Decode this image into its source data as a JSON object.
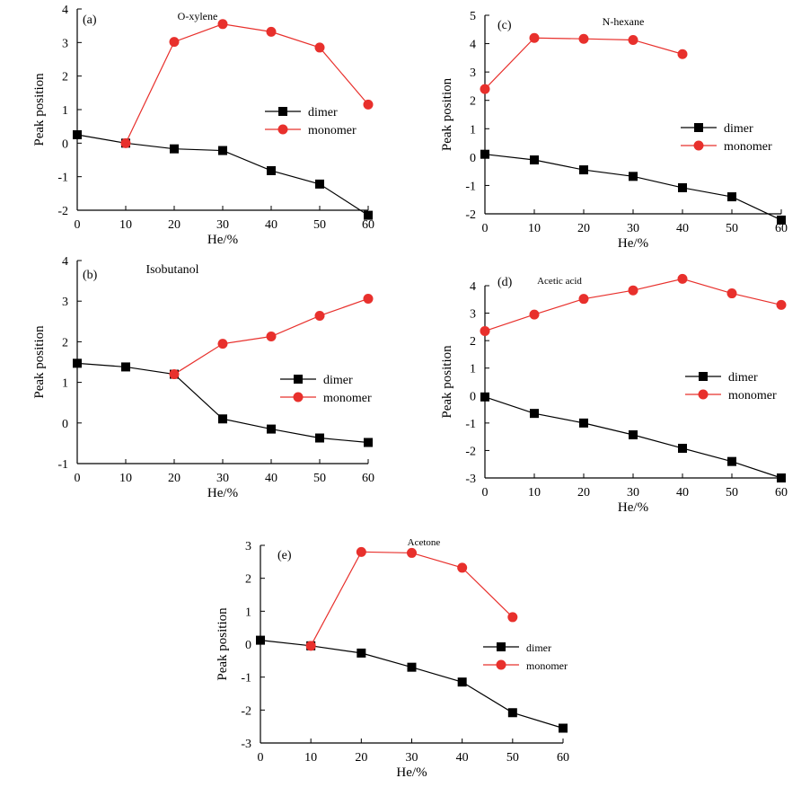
{
  "chart_data": [
    {
      "type": "line",
      "panel_label": "(a)",
      "title": "O-xylene",
      "xlabel": "He/%",
      "ylabel": "Peak position",
      "xlim": [
        0,
        60
      ],
      "ylim": [
        -2,
        4
      ],
      "x_ticks": [
        0,
        10,
        20,
        30,
        40,
        50,
        60
      ],
      "y_ticks": [
        -2,
        -1,
        0,
        1,
        2,
        3,
        4
      ],
      "legend_position": "right-middle",
      "series": [
        {
          "name": "dimer",
          "color": "#000000",
          "marker": "square",
          "x": [
            0,
            10,
            20,
            30,
            40,
            50,
            60
          ],
          "values": [
            0.25,
            0.0,
            -0.17,
            -0.22,
            -0.82,
            -1.22,
            -2.15
          ]
        },
        {
          "name": "monomer",
          "color": "#e8302c",
          "marker": "circle",
          "x": [
            10,
            20,
            30,
            40,
            50,
            60
          ],
          "values": [
            0.0,
            3.02,
            3.55,
            3.32,
            2.85,
            1.15
          ]
        }
      ]
    },
    {
      "type": "line",
      "panel_label": "(b)",
      "title": "Isobutanol",
      "xlabel": "He/%",
      "ylabel": "Peak position",
      "xlim": [
        0,
        60
      ],
      "ylim": [
        -1,
        4
      ],
      "x_ticks": [
        0,
        10,
        20,
        30,
        40,
        50,
        60
      ],
      "y_ticks": [
        -1,
        0,
        1,
        2,
        3,
        4
      ],
      "legend_position": "right-middle",
      "series": [
        {
          "name": "dimer",
          "color": "#000000",
          "marker": "square",
          "x": [
            0,
            10,
            20,
            30,
            40,
            50,
            60
          ],
          "values": [
            1.47,
            1.38,
            1.2,
            0.1,
            -0.15,
            -0.37,
            -0.48
          ]
        },
        {
          "name": "monomer",
          "color": "#e8302c",
          "marker": "circle",
          "x": [
            20,
            30,
            40,
            50,
            60
          ],
          "values": [
            1.2,
            1.95,
            2.13,
            2.64,
            3.06
          ]
        }
      ]
    },
    {
      "type": "line",
      "panel_label": "(c)",
      "title": "N-hexane",
      "xlabel": "He/%",
      "ylabel": "Peak position",
      "xlim": [
        0,
        60
      ],
      "ylim": [
        -2,
        5
      ],
      "x_ticks": [
        0,
        10,
        20,
        30,
        40,
        50,
        60
      ],
      "y_ticks": [
        -2,
        -1,
        0,
        1,
        2,
        3,
        4,
        5
      ],
      "legend_position": "right-middle",
      "series": [
        {
          "name": "dimer",
          "color": "#000000",
          "marker": "square",
          "x": [
            0,
            10,
            20,
            30,
            40,
            50,
            60
          ],
          "values": [
            0.1,
            -0.1,
            -0.45,
            -0.68,
            -1.08,
            -1.4,
            -2.22
          ]
        },
        {
          "name": "monomer",
          "color": "#e8302c",
          "marker": "circle",
          "x": [
            0,
            10,
            20,
            30,
            40
          ],
          "values": [
            2.4,
            4.2,
            4.17,
            4.13,
            3.63
          ]
        }
      ]
    },
    {
      "type": "line",
      "panel_label": "(d)",
      "title": "Acetic acid",
      "xlabel": "He/%",
      "ylabel": "Peak position",
      "xlim": [
        0,
        60
      ],
      "ylim": [
        -3,
        4
      ],
      "x_ticks": [
        0,
        10,
        20,
        30,
        40,
        50,
        60
      ],
      "y_ticks": [
        -3,
        -2,
        -1,
        0,
        1,
        2,
        3,
        4
      ],
      "legend_position": "right-middle",
      "series": [
        {
          "name": "dimer",
          "color": "#000000",
          "marker": "square",
          "x": [
            0,
            10,
            20,
            30,
            40,
            50,
            60
          ],
          "values": [
            -0.05,
            -0.65,
            -1.0,
            -1.43,
            -1.92,
            -2.4,
            -3.0
          ]
        },
        {
          "name": "monomer",
          "color": "#e8302c",
          "marker": "circle",
          "x": [
            0,
            10,
            20,
            30,
            40,
            50,
            60
          ],
          "values": [
            2.35,
            2.95,
            3.52,
            3.83,
            4.25,
            3.72,
            3.3
          ]
        }
      ]
    },
    {
      "type": "line",
      "panel_label": "(e)",
      "title": "Acetone",
      "xlabel": "He/%",
      "ylabel": "Peak position",
      "xlim": [
        0,
        60
      ],
      "ylim": [
        -3,
        3
      ],
      "x_ticks": [
        0,
        10,
        20,
        30,
        40,
        50,
        60
      ],
      "y_ticks": [
        -3,
        -2,
        -1,
        0,
        1,
        2,
        3
      ],
      "legend_position": "right-middle",
      "series": [
        {
          "name": "dimer",
          "color": "#000000",
          "marker": "square",
          "x": [
            0,
            10,
            20,
            30,
            40,
            50,
            60
          ],
          "values": [
            0.12,
            -0.05,
            -0.27,
            -0.7,
            -1.15,
            -2.08,
            -2.55
          ]
        },
        {
          "name": "monomer",
          "color": "#e8302c",
          "marker": "circle",
          "x": [
            10,
            20,
            30,
            40,
            50
          ],
          "values": [
            -0.05,
            2.8,
            2.77,
            2.32,
            0.82
          ]
        }
      ]
    }
  ]
}
